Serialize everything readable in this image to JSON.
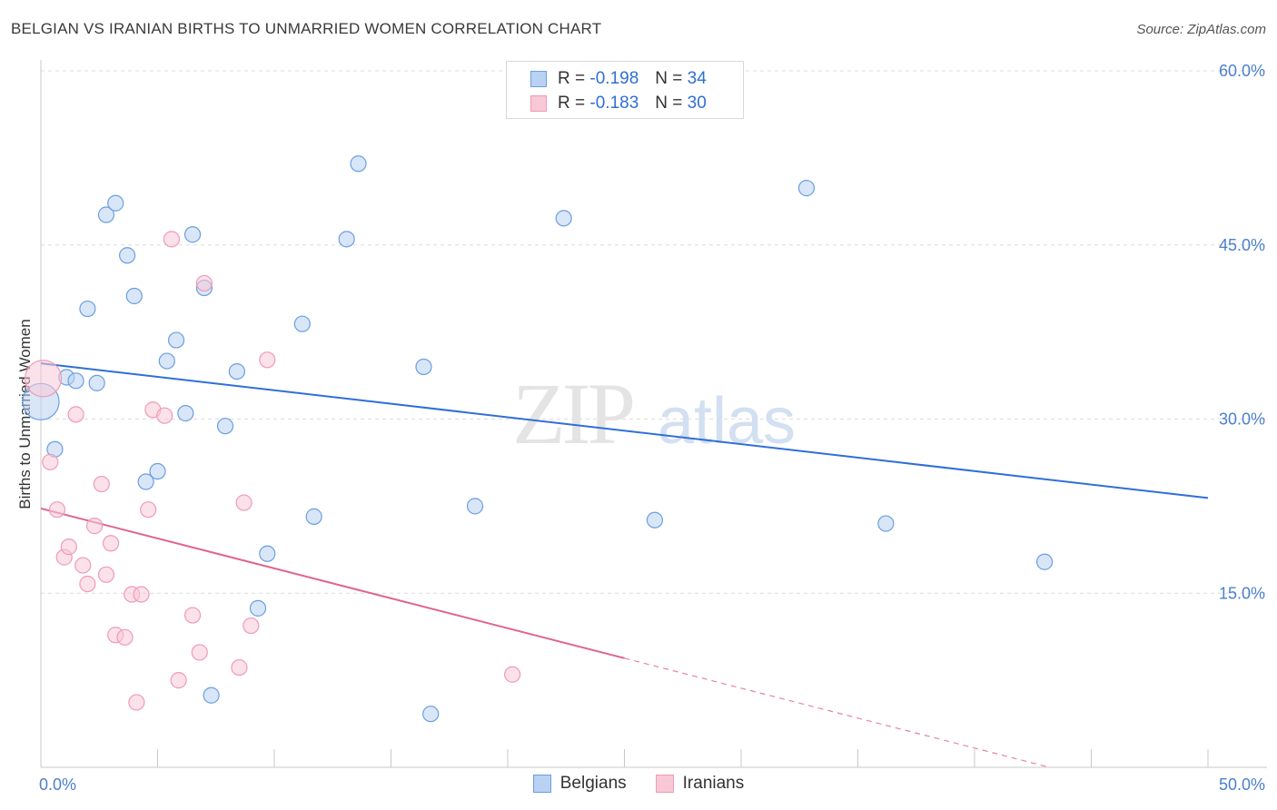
{
  "header": {
    "title": "BELGIAN VS IRANIAN BIRTHS TO UNMARRIED WOMEN CORRELATION CHART",
    "source": "Source: ZipAtlas.com"
  },
  "watermark": {
    "zip": "ZIP",
    "atlas": "atlas"
  },
  "legend": {
    "belgians": {
      "r_label": "R = ",
      "r_value": "-0.198",
      "n_label": "N = ",
      "n_value": "34"
    },
    "iranians": {
      "r_label": "R = ",
      "r_value": "-0.183",
      "n_label": "N = ",
      "n_value": "30"
    }
  },
  "chart_data": {
    "type": "scatter",
    "title": "BELGIAN VS IRANIAN BIRTHS TO UNMARRIED WOMEN CORRELATION CHART",
    "xlabel": "",
    "ylabel": "Births to Unmarried Women",
    "xlim": [
      0,
      50
    ],
    "ylim": [
      0,
      60
    ],
    "x_tick_labels": [
      "0.0%",
      "50.0%"
    ],
    "y_ticks": [
      {
        "value": 15,
        "label": "15.0%"
      },
      {
        "value": 30,
        "label": "30.0%"
      },
      {
        "value": 45,
        "label": "45.0%"
      },
      {
        "value": 60,
        "label": "60.0%"
      }
    ],
    "grid": true,
    "legend_position": "top-center and bottom",
    "series": [
      {
        "name": "Belgians",
        "color": "#6a9fe0",
        "fill": "#b9d1f2",
        "trend_color": "#2f6fd6",
        "trend": {
          "x0": 0,
          "y0": 34.8,
          "x1": 50,
          "y1": 23.2,
          "solid_until": 50
        },
        "points": [
          {
            "x": 0.0,
            "y": 31.5,
            "big": true
          },
          {
            "x": 0.6,
            "y": 27.4
          },
          {
            "x": 1.1,
            "y": 33.6
          },
          {
            "x": 1.5,
            "y": 33.3
          },
          {
            "x": 2.0,
            "y": 39.5
          },
          {
            "x": 2.4,
            "y": 33.1
          },
          {
            "x": 2.8,
            "y": 47.6
          },
          {
            "x": 3.2,
            "y": 48.6
          },
          {
            "x": 3.7,
            "y": 44.1
          },
          {
            "x": 4.0,
            "y": 40.6
          },
          {
            "x": 4.5,
            "y": 24.6
          },
          {
            "x": 5.0,
            "y": 25.5
          },
          {
            "x": 5.4,
            "y": 35.0
          },
          {
            "x": 5.8,
            "y": 36.8
          },
          {
            "x": 6.2,
            "y": 30.5
          },
          {
            "x": 6.5,
            "y": 45.9
          },
          {
            "x": 7.0,
            "y": 41.3
          },
          {
            "x": 7.3,
            "y": 6.2
          },
          {
            "x": 7.9,
            "y": 29.4
          },
          {
            "x": 8.4,
            "y": 34.1
          },
          {
            "x": 9.3,
            "y": 13.7
          },
          {
            "x": 9.7,
            "y": 18.4
          },
          {
            "x": 11.2,
            "y": 38.2
          },
          {
            "x": 11.7,
            "y": 21.6
          },
          {
            "x": 13.1,
            "y": 45.5
          },
          {
            "x": 13.6,
            "y": 52.0
          },
          {
            "x": 16.4,
            "y": 34.5
          },
          {
            "x": 16.7,
            "y": 4.6
          },
          {
            "x": 18.6,
            "y": 22.5
          },
          {
            "x": 22.4,
            "y": 47.3
          },
          {
            "x": 26.3,
            "y": 21.3
          },
          {
            "x": 32.8,
            "y": 49.9
          },
          {
            "x": 36.2,
            "y": 21.0
          },
          {
            "x": 43.0,
            "y": 17.7
          }
        ]
      },
      {
        "name": "Iranians",
        "color": "#ef9bb5",
        "fill": "#f8c8d7",
        "trend_color": "#e0648e",
        "trend": {
          "x0": 0,
          "y0": 22.3,
          "x1": 50,
          "y1": -3.5,
          "solid_until": 25
        },
        "points": [
          {
            "x": 0.1,
            "y": 33.5,
            "big": true
          },
          {
            "x": 0.4,
            "y": 26.3
          },
          {
            "x": 0.7,
            "y": 22.2
          },
          {
            "x": 1.0,
            "y": 18.1
          },
          {
            "x": 1.2,
            "y": 19.0
          },
          {
            "x": 1.5,
            "y": 30.4
          },
          {
            "x": 1.8,
            "y": 17.4
          },
          {
            "x": 2.0,
            "y": 15.8
          },
          {
            "x": 2.3,
            "y": 20.8
          },
          {
            "x": 2.6,
            "y": 24.4
          },
          {
            "x": 2.8,
            "y": 16.6
          },
          {
            "x": 3.0,
            "y": 19.3
          },
          {
            "x": 3.2,
            "y": 11.4
          },
          {
            "x": 3.6,
            "y": 11.2
          },
          {
            "x": 3.9,
            "y": 14.9
          },
          {
            "x": 4.1,
            "y": 5.6
          },
          {
            "x": 4.3,
            "y": 14.9
          },
          {
            "x": 4.6,
            "y": 22.2
          },
          {
            "x": 4.8,
            "y": 30.8
          },
          {
            "x": 5.3,
            "y": 30.3
          },
          {
            "x": 5.6,
            "y": 45.5
          },
          {
            "x": 5.9,
            "y": 7.5
          },
          {
            "x": 6.5,
            "y": 13.1
          },
          {
            "x": 6.8,
            "y": 9.9
          },
          {
            "x": 7.0,
            "y": 41.7
          },
          {
            "x": 8.5,
            "y": 8.6
          },
          {
            "x": 8.7,
            "y": 22.8
          },
          {
            "x": 9.0,
            "y": 12.2
          },
          {
            "x": 9.7,
            "y": 35.1
          },
          {
            "x": 20.2,
            "y": 8.0
          }
        ]
      }
    ]
  }
}
